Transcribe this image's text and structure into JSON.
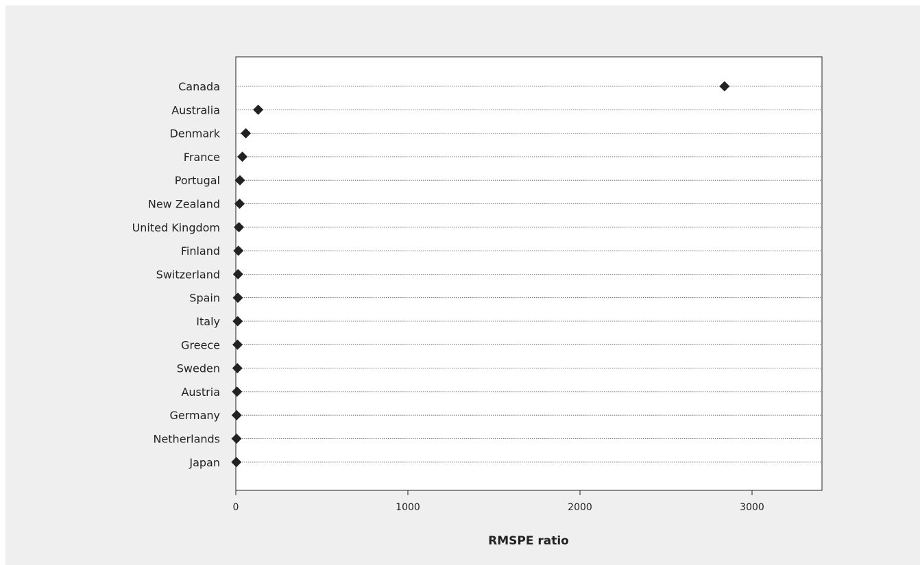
{
  "chart_data": {
    "type": "scatter",
    "title": "",
    "xlabel": "RMSPE ratio",
    "ylabel": "",
    "xlim": [
      0,
      3400
    ],
    "xticks": [
      0,
      1000,
      2000,
      3000
    ],
    "grid": "dotted horizontal lines per category",
    "legend": "none",
    "marker": "diamond",
    "marker_color": "#222222",
    "categories": [
      "Canada",
      "Australia",
      "Denmark",
      "France",
      "Portugal",
      "New Zealand",
      "United Kingdom",
      "Finland",
      "Switzerland",
      "Spain",
      "Italy",
      "Greece",
      "Sweden",
      "Austria",
      "Germany",
      "Netherlands",
      "Japan"
    ],
    "values": [
      2840,
      130,
      58,
      38,
      24,
      22,
      18,
      15,
      13,
      12,
      11,
      10,
      9,
      7,
      5,
      4,
      3
    ]
  }
}
